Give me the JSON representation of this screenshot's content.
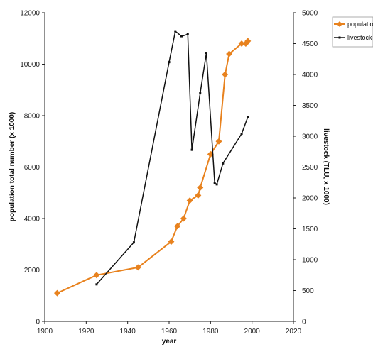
{
  "chart_data": {
    "type": "line",
    "xlabel": "year",
    "ylabel_left": "population total number (x 1000)",
    "ylabel_right": "livestock (TLU, x 1000)",
    "xlim": [
      1900,
      2020
    ],
    "ylim_left": [
      0,
      12000
    ],
    "ylim_right": [
      0,
      5000
    ],
    "x_ticks": [
      "1900",
      "1920",
      "1940",
      "1960",
      "1980",
      "2000",
      "2020"
    ],
    "y_left_ticks": [
      "0",
      "2000",
      "4000",
      "6000",
      "8000",
      "10000",
      "12000"
    ],
    "y_right_ticks": [
      "0",
      "500",
      "1000",
      "1500",
      "2000",
      "2500",
      "3000",
      "3500",
      "4000",
      "4500",
      "5000"
    ],
    "grid": false,
    "legend_position": "top-right",
    "series": [
      {
        "name": "populatio",
        "axis": "left",
        "color": "#e8821e",
        "marker": "diamond",
        "x": [
          1906,
          1925,
          1945,
          1961,
          1964,
          1967,
          1970,
          1974,
          1975,
          1980,
          1984,
          1987,
          1989,
          1995,
          1997,
          1998
        ],
        "y": [
          1100,
          1800,
          2100,
          3100,
          3700,
          4000,
          4700,
          4900,
          5200,
          6500,
          7000,
          9600,
          10400,
          10800,
          10800,
          10900
        ]
      },
      {
        "name": "livestock",
        "axis": "right",
        "color": "#111111",
        "marker": "square",
        "x": [
          1925,
          1943,
          1960,
          1963,
          1966,
          1969,
          1971,
          1975,
          1978,
          1982,
          1983,
          1986,
          1995,
          1998
        ],
        "y": [
          600,
          1280,
          4200,
          4700,
          4620,
          4650,
          2780,
          3700,
          4350,
          2240,
          2220,
          2560,
          3040,
          3310
        ]
      }
    ]
  }
}
